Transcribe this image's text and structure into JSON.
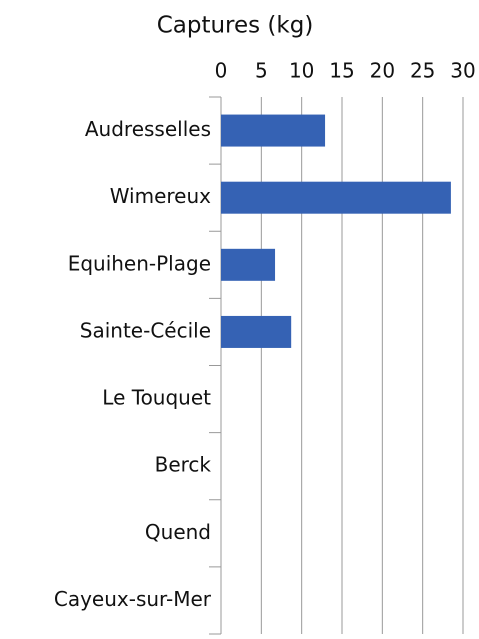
{
  "chart_data": {
    "type": "hbar",
    "title": "Captures (kg)",
    "categories": [
      "Audresselles",
      "Wimereux",
      "Equihen-Plage",
      "Sainte-Cécile",
      "Le Touquet",
      "Berck",
      "Quend",
      "Cayeux-sur-Mer"
    ],
    "values": [
      12.9,
      28.5,
      6.7,
      8.7,
      0,
      0,
      0,
      0
    ],
    "color": "#3562b4",
    "xlim": [
      0,
      30
    ],
    "xticks": [
      0,
      5,
      10,
      15,
      20,
      25,
      30
    ],
    "grid": true
  }
}
